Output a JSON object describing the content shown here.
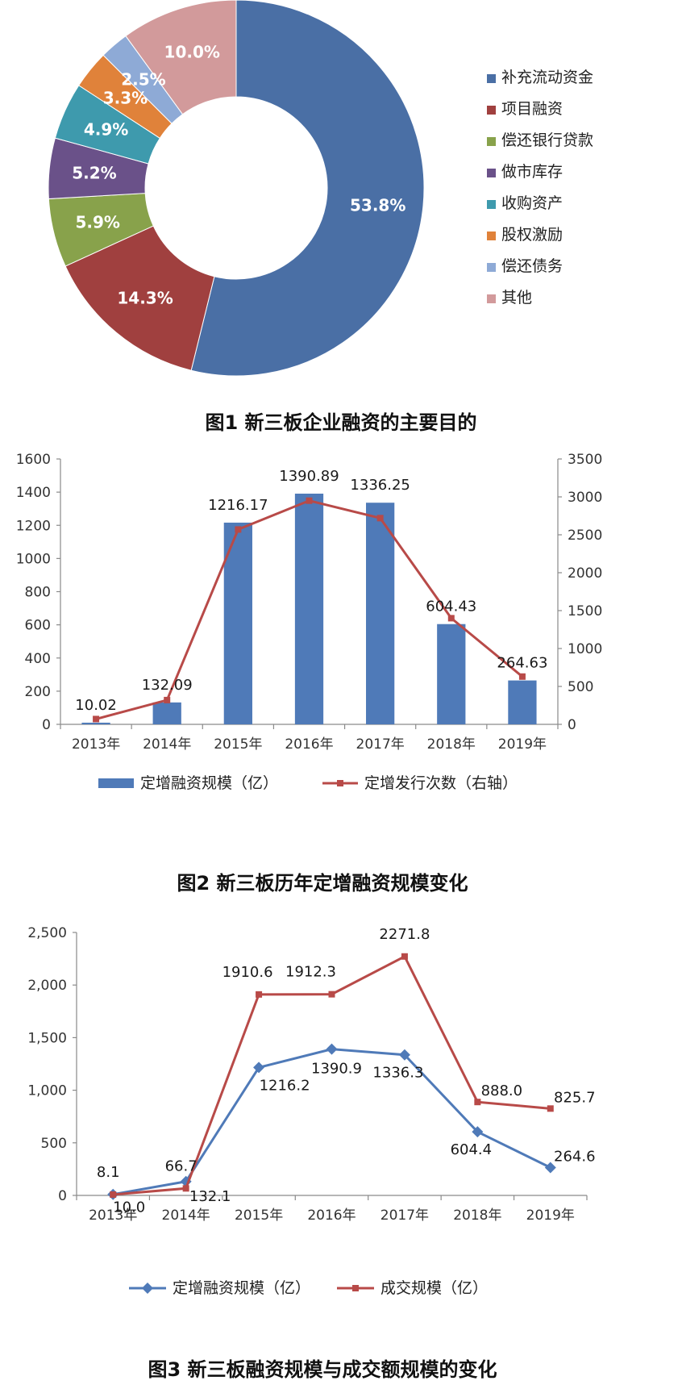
{
  "chart_data": [
    {
      "type": "pie",
      "title": "图1  新三板企业融资的主要目的",
      "categories": [
        "补充流动资金",
        "项目融资",
        "偿还银行贷款",
        "做市库存",
        "收购资产",
        "股权激励",
        "偿还债务",
        "其他"
      ],
      "values": [
        53.8,
        14.3,
        5.9,
        5.2,
        4.9,
        3.3,
        2.5,
        10.0
      ],
      "value_labels": [
        "53.8%",
        "14.3%",
        "5.9%",
        "5.2%",
        "4.9%",
        "3.3%",
        "2.5%",
        "10.0%"
      ],
      "colors": [
        "#4a6fa5",
        "#a0403f",
        "#88a24b",
        "#6a5189",
        "#3e9aad",
        "#e0823a",
        "#8eaad6",
        "#d29a9b"
      ],
      "legend_position": "right"
    },
    {
      "type": "bar",
      "title": "图2  新三板历年定增融资规模变化",
      "categories": [
        "2013年",
        "2014年",
        "2015年",
        "2016年",
        "2017年",
        "2018年",
        "2019年"
      ],
      "series": [
        {
          "name": "定增融资规模（亿）",
          "type": "bar",
          "axis": "left",
          "color": "#4f7ab8",
          "values": [
            10.02,
            132.09,
            1216.17,
            1390.89,
            1336.25,
            604.43,
            264.63
          ],
          "labels": [
            "10.02",
            "132.09",
            "1216.17",
            "1390.89",
            "1336.25",
            "604.43",
            "264.63"
          ]
        },
        {
          "name": "定增发行次数（右轴）",
          "type": "line",
          "axis": "right",
          "color": "#b84a48",
          "values": [
            70,
            320,
            2570,
            2950,
            2720,
            1400,
            630
          ]
        }
      ],
      "ylim": [
        0,
        1600
      ],
      "yticks": [
        "0",
        "200",
        "400",
        "600",
        "800",
        "1000",
        "1200",
        "1400",
        "1600"
      ],
      "ylim_right": [
        0,
        3500
      ],
      "yticks_right": [
        "0",
        "500",
        "1000",
        "1500",
        "2000",
        "2500",
        "3000",
        "3500"
      ],
      "legend_position": "bottom"
    },
    {
      "type": "line",
      "title": "图3  新三板融资规模与成交额规模的变化",
      "categories": [
        "2013年",
        "2014年",
        "2015年",
        "2016年",
        "2017年",
        "2018年",
        "2019年"
      ],
      "series": [
        {
          "name": "定增融资规模（亿）",
          "color": "#4f7ab8",
          "marker": "diamond",
          "values": [
            10.0,
            132.1,
            1216.2,
            1390.9,
            1336.3,
            604.4,
            264.6
          ],
          "labels": [
            "10.0",
            "132.1",
            "1216.2",
            "1390.9",
            "1336.3",
            "604.4",
            "264.6"
          ]
        },
        {
          "name": "成交规模（亿）",
          "color": "#b84a48",
          "marker": "square",
          "values": [
            8.1,
            66.7,
            1910.6,
            1912.3,
            2271.8,
            888.0,
            825.7
          ],
          "labels": [
            "8.1",
            "66.7",
            "1910.6",
            "1912.3",
            "2271.8",
            "888.0",
            "825.7"
          ]
        }
      ],
      "ylim": [
        0,
        2500
      ],
      "yticks": [
        "0",
        "500",
        "1,000",
        "1,500",
        "2,000",
        "2,500"
      ],
      "legend_position": "bottom"
    }
  ]
}
